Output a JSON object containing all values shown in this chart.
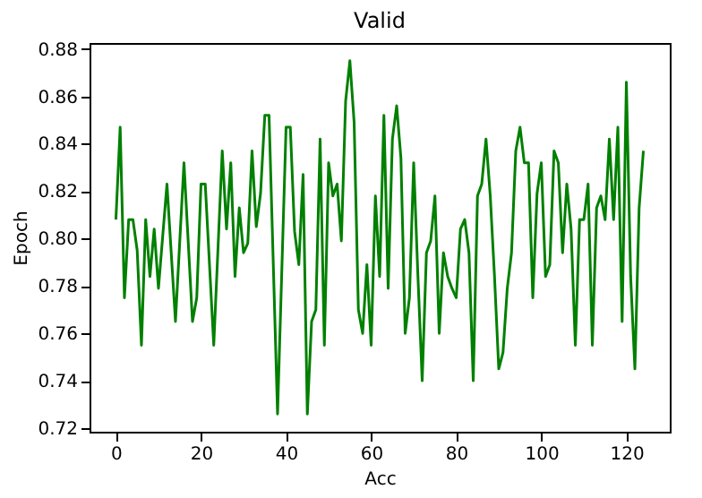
{
  "chart_data": {
    "type": "line",
    "title": "Valid",
    "xlabel": "Acc",
    "ylabel": "Epoch",
    "x": [
      0,
      1,
      2,
      3,
      4,
      5,
      6,
      7,
      8,
      9,
      10,
      12,
      14,
      16,
      18,
      19,
      20,
      21,
      23,
      25,
      26,
      27,
      28,
      29,
      30,
      31,
      32,
      33,
      34,
      35,
      36,
      38,
      40,
      41,
      42,
      43,
      44,
      45,
      46,
      47,
      48,
      49,
      50,
      51,
      52,
      53,
      54,
      55,
      56,
      57,
      58,
      59,
      60,
      61,
      62,
      63,
      64,
      65,
      66,
      67,
      68,
      69,
      70,
      71,
      72,
      73,
      74,
      75,
      76,
      77,
      78,
      79,
      80,
      81,
      82,
      83,
      84,
      85,
      86,
      87,
      88,
      89,
      90,
      91,
      92,
      93,
      94,
      95,
      96,
      97,
      98,
      99,
      100,
      101,
      102,
      103,
      104,
      105,
      106,
      107,
      108,
      109,
      110,
      111,
      112,
      113,
      114,
      115,
      116,
      117,
      118,
      119,
      120,
      121,
      122,
      123,
      124
    ],
    "series": [
      {
        "color": "#008000",
        "values": [
          0.808,
          0.847,
          0.775,
          0.808,
          0.808,
          0.795,
          0.755,
          0.808,
          0.784,
          0.804,
          0.779,
          0.823,
          0.765,
          0.832,
          0.765,
          0.775,
          0.823,
          0.823,
          0.755,
          0.837,
          0.804,
          0.832,
          0.784,
          0.813,
          0.794,
          0.798,
          0.837,
          0.805,
          0.819,
          0.852,
          0.852,
          0.726,
          0.847,
          0.847,
          0.803,
          0.789,
          0.827,
          0.726,
          0.765,
          0.77,
          0.842,
          0.755,
          0.832,
          0.818,
          0.823,
          0.799,
          0.858,
          0.875,
          0.849,
          0.77,
          0.76,
          0.789,
          0.755,
          0.818,
          0.784,
          0.852,
          0.779,
          0.842,
          0.856,
          0.834,
          0.76,
          0.775,
          0.832,
          0.784,
          0.74,
          0.794,
          0.799,
          0.818,
          0.76,
          0.794,
          0.784,
          0.779,
          0.775,
          0.804,
          0.808,
          0.794,
          0.74,
          0.818,
          0.823,
          0.842,
          0.818,
          0.784,
          0.745,
          0.752,
          0.779,
          0.794,
          0.837,
          0.847,
          0.832,
          0.832,
          0.775,
          0.819,
          0.832,
          0.784,
          0.789,
          0.837,
          0.832,
          0.794,
          0.823,
          0.804,
          0.755,
          0.808,
          0.808,
          0.823,
          0.755,
          0.813,
          0.818,
          0.808,
          0.842,
          0.808,
          0.847,
          0.765,
          0.866,
          0.784,
          0.745,
          0.813,
          0.837
        ]
      }
    ],
    "xlim": [
      -6.2,
      130.2
    ],
    "xticks": [
      0,
      20,
      40,
      60,
      80,
      100,
      120
    ],
    "ylim": [
      0.7185,
      0.8825
    ],
    "yticks": [
      0.72,
      0.74,
      0.76,
      0.78,
      {
        "value": 0.8,
        "label": "0.80"
      },
      0.82,
      0.84,
      0.86,
      0.88
    ],
    "grid": false,
    "line_style": "solid"
  }
}
